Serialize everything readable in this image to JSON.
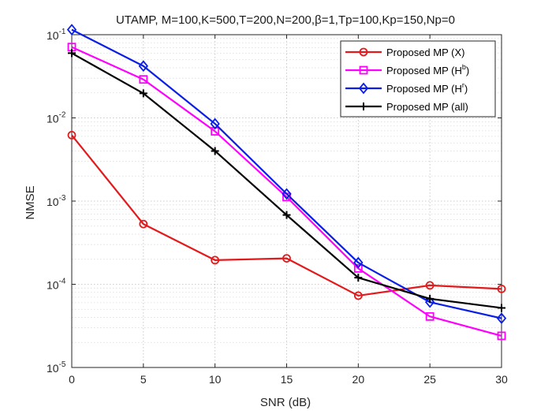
{
  "chart_data": {
    "type": "line",
    "title": "UTAMP, M=100,K=500,T=200,N=200,β=1,Tp=100,Kp=150,Np=0",
    "xlabel": "SNR (dB)",
    "ylabel": "NMSE",
    "yscale": "log",
    "xlim": [
      0,
      30
    ],
    "ylim": [
      1e-05,
      0.1
    ],
    "grid": true,
    "legend_position": "top-right",
    "x": [
      0,
      5,
      10,
      15,
      20,
      25,
      30
    ],
    "x_tick_labels": [
      "0",
      "5",
      "10",
      "15",
      "20",
      "25",
      "30"
    ],
    "y_tick_labels": [
      {
        "value": 1e-05,
        "base": "10",
        "exp": "-5"
      },
      {
        "value": 0.0001,
        "base": "10",
        "exp": "-4"
      },
      {
        "value": 0.001,
        "base": "10",
        "exp": "-3"
      },
      {
        "value": 0.01,
        "base": "10",
        "exp": "-2"
      },
      {
        "value": 0.1,
        "base": "10",
        "exp": "-1"
      }
    ],
    "series": [
      {
        "name": "Proposed MP (X)",
        "label_main": "Proposed MP (X)",
        "label_sup": "",
        "label_end": "",
        "color": "#e31a1c",
        "marker": "circle",
        "values": [
          0.0062,
          0.00053,
          0.000195,
          0.000205,
          7.3e-05,
          9.7e-05,
          8.8e-05
        ]
      },
      {
        "name": "Proposed MP (H^b)",
        "label_main": "Proposed MP (H",
        "label_sup": "b",
        "label_end": ")",
        "color": "#ff00ff",
        "marker": "square",
        "values": [
          0.071,
          0.029,
          0.0069,
          0.00112,
          0.000155,
          4.1e-05,
          2.4e-05
        ]
      },
      {
        "name": "Proposed MP (H^r)",
        "label_main": "Proposed MP (H",
        "label_sup": "r",
        "label_end": ")",
        "color": "#0a1ee6",
        "marker": "diamond",
        "values": [
          0.115,
          0.042,
          0.0085,
          0.00122,
          0.000182,
          6.1e-05,
          3.9e-05
        ]
      },
      {
        "name": "Proposed MP (all)",
        "label_main": "Proposed MP (all)",
        "label_sup": "",
        "label_end": "",
        "color": "#000000",
        "marker": "plus",
        "values": [
          0.06,
          0.0197,
          0.004,
          0.00068,
          0.00012,
          6.7e-05,
          5.2e-05
        ]
      }
    ]
  }
}
